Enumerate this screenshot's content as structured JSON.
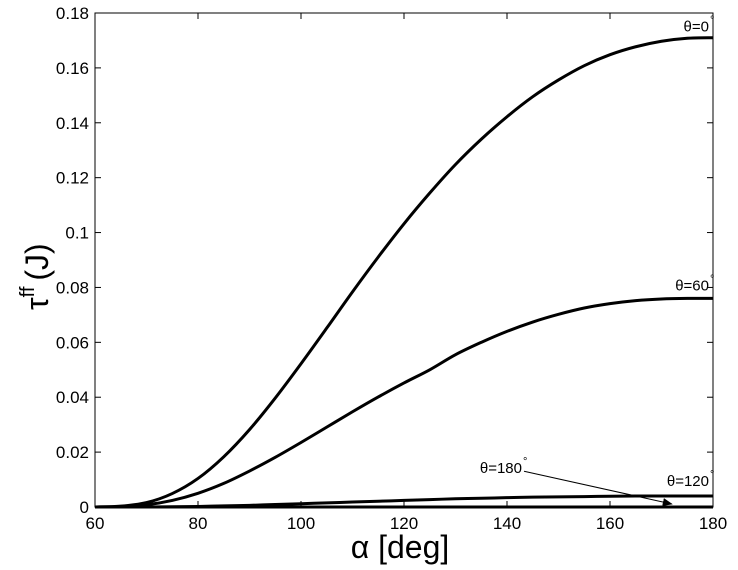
{
  "chart_data": {
    "type": "line",
    "title": "",
    "xlabel": "α [deg]",
    "ylabel_main": "τ",
    "ylabel_sup": "ff",
    "ylabel_unit": "(J)",
    "xlim": [
      60,
      180
    ],
    "ylim": [
      0,
      0.18
    ],
    "grid": false,
    "legend": "none",
    "x_ticks": [
      "60",
      "80",
      "100",
      "120",
      "140",
      "160",
      "180"
    ],
    "y_ticks": [
      "0",
      "0.02",
      "0.04",
      "0.06",
      "0.08",
      "0.1",
      "0.12",
      "0.14",
      "0.16",
      "0.18"
    ],
    "x": [
      60,
      65,
      70,
      75,
      80,
      85,
      90,
      95,
      100,
      105,
      110,
      115,
      120,
      125,
      130,
      135,
      140,
      145,
      150,
      155,
      160,
      165,
      170,
      175,
      180
    ],
    "series": [
      {
        "name": "θ=0",
        "values": [
          0,
          0.0003,
          0.0016,
          0.0049,
          0.0104,
          0.0183,
          0.0282,
          0.0397,
          0.0522,
          0.0652,
          0.0784,
          0.0911,
          0.1032,
          0.1144,
          0.1248,
          0.134,
          0.1422,
          0.1495,
          0.1556,
          0.1608,
          0.1648,
          0.1677,
          0.1697,
          0.1708,
          0.171
        ]
      },
      {
        "name": "θ=60",
        "values": [
          0,
          0.0002,
          0.0008,
          0.0024,
          0.005,
          0.0086,
          0.0131,
          0.0181,
          0.0235,
          0.0291,
          0.0347,
          0.0401,
          0.0452,
          0.05,
          0.0555,
          0.06,
          0.064,
          0.0674,
          0.0702,
          0.0725,
          0.0741,
          0.0752,
          0.0758,
          0.076,
          0.076
        ]
      },
      {
        "name": "θ=120",
        "values": [
          0,
          0.0,
          0.0,
          0.0001,
          0.0002,
          0.0004,
          0.0006,
          0.0009,
          0.0012,
          0.0015,
          0.0018,
          0.0021,
          0.0024,
          0.0027,
          0.003,
          0.0032,
          0.0034,
          0.0036,
          0.0037,
          0.0038,
          0.0039,
          0.004,
          0.004,
          0.004,
          0.004
        ]
      },
      {
        "name": "θ=180",
        "values": [
          0,
          0,
          0,
          0,
          0,
          0,
          0,
          0,
          0,
          0,
          0,
          0,
          0,
          0,
          0,
          0,
          0,
          0,
          0,
          0,
          0,
          0,
          0,
          0,
          0
        ]
      }
    ],
    "annotations": [
      {
        "text": "θ=0",
        "series": "θ=0"
      },
      {
        "text": "θ=60",
        "series": "θ=60"
      },
      {
        "text": "θ=120",
        "series": "θ=120"
      },
      {
        "text": "θ=180",
        "series": "θ=180",
        "arrow_to": [
          172,
          0
        ]
      }
    ],
    "degree_symbol": "°"
  }
}
